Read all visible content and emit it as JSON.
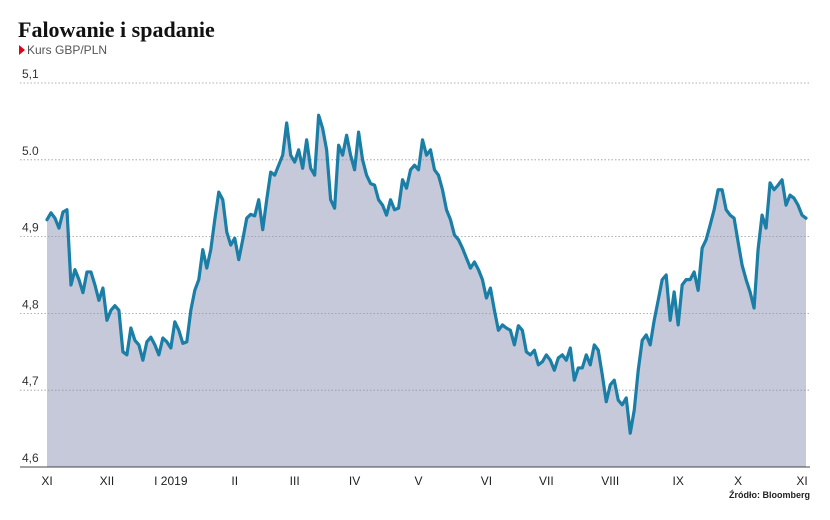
{
  "chart_data": {
    "type": "area",
    "title": "Falowanie i spadanie",
    "subtitle": "Kurs GBP/PLN",
    "source": "Źródło: Bloomberg",
    "line_color": "#1a7ea6",
    "fill_color": "#c5c9da",
    "grid": true,
    "ylim": [
      4.6,
      5.1
    ],
    "yticks": [
      {
        "value": 4.6,
        "label": "4,6"
      },
      {
        "value": 4.7,
        "label": "4,7"
      },
      {
        "value": 4.8,
        "label": "4,8"
      },
      {
        "value": 4.9,
        "label": "4,9"
      },
      {
        "value": 5.0,
        "label": "5.0"
      },
      {
        "value": 5.1,
        "label": "5,1"
      }
    ],
    "categories": [
      "XI",
      null,
      null,
      null,
      null,
      null,
      null,
      null,
      null,
      null,
      null,
      null,
      null,
      null,
      null,
      "XII",
      null,
      null,
      null,
      null,
      null,
      null,
      null,
      null,
      null,
      null,
      null,
      null,
      null,
      null,
      null,
      "I 2019",
      null,
      null,
      null,
      null,
      null,
      null,
      null,
      null,
      null,
      null,
      null,
      null,
      null,
      null,
      null,
      "II",
      null,
      null,
      null,
      null,
      null,
      null,
      null,
      null,
      null,
      null,
      null,
      null,
      null,
      null,
      "III",
      null,
      null,
      null,
      null,
      null,
      null,
      null,
      null,
      null,
      null,
      null,
      null,
      null,
      null,
      "IV",
      null,
      null,
      null,
      null,
      null,
      null,
      null,
      null,
      null,
      null,
      null,
      null,
      null,
      null,
      null,
      "V",
      null,
      null,
      null,
      null,
      null,
      null,
      null,
      null,
      null,
      null,
      null,
      null,
      null,
      null,
      null,
      null,
      "VI",
      null,
      null,
      null,
      null,
      null,
      null,
      null,
      null,
      null,
      null,
      null,
      null,
      null,
      null,
      "VII",
      null,
      null,
      null,
      null,
      null,
      null,
      null,
      null,
      null,
      null,
      null,
      null,
      null,
      null,
      null,
      "VIII",
      null,
      null,
      null,
      null,
      null,
      null,
      null,
      null,
      null,
      null,
      null,
      null,
      null,
      null,
      null,
      null,
      "IX",
      null,
      null,
      null,
      null,
      null,
      null,
      null,
      null,
      null,
      null,
      null,
      null,
      null,
      null,
      "X",
      null,
      null,
      null,
      null,
      null,
      null,
      null,
      null,
      null,
      null,
      null,
      null,
      null,
      null,
      null,
      "XI",
      null
    ],
    "values": [
      4.922,
      4.931,
      4.924,
      4.911,
      4.932,
      4.935,
      4.837,
      4.857,
      4.844,
      4.827,
      4.854,
      4.854,
      4.837,
      4.817,
      4.833,
      4.791,
      4.804,
      4.81,
      4.804,
      4.75,
      4.746,
      4.781,
      4.765,
      4.759,
      4.739,
      4.763,
      4.769,
      4.759,
      4.746,
      4.768,
      4.763,
      4.755,
      4.789,
      4.778,
      4.761,
      4.763,
      4.804,
      4.83,
      4.844,
      4.883,
      4.859,
      4.883,
      4.922,
      4.958,
      4.948,
      4.906,
      4.889,
      4.898,
      4.87,
      4.896,
      4.924,
      4.929,
      4.927,
      4.948,
      4.909,
      4.948,
      4.984,
      4.98,
      4.993,
      5.006,
      5.048,
      5.006,
      4.997,
      5.013,
      4.989,
      5.026,
      4.989,
      4.98,
      5.058,
      5.041,
      5.013,
      4.948,
      4.937,
      5.019,
      5.006,
      5.032,
      5.006,
      4.987,
      5.036,
      5.0,
      4.98,
      4.969,
      4.967,
      4.948,
      4.941,
      4.928,
      4.948,
      4.935,
      4.937,
      4.974,
      4.963,
      4.987,
      4.993,
      4.987,
      5.026,
      5.006,
      5.013,
      4.987,
      4.98,
      4.961,
      4.935,
      4.922,
      4.902,
      4.896,
      4.885,
      4.872,
      4.859,
      4.867,
      4.857,
      4.844,
      4.82,
      4.833,
      4.804,
      4.778,
      4.785,
      4.781,
      4.778,
      4.759,
      4.784,
      4.778,
      4.75,
      4.746,
      4.752,
      4.733,
      4.737,
      4.746,
      4.739,
      4.726,
      4.742,
      4.746,
      4.739,
      4.755,
      4.713,
      4.729,
      4.729,
      4.746,
      4.733,
      4.759,
      4.752,
      4.72,
      4.685,
      4.707,
      4.713,
      4.687,
      4.681,
      4.69,
      4.644,
      4.674,
      4.726,
      4.765,
      4.772,
      4.759,
      4.791,
      4.817,
      4.844,
      4.85,
      4.791,
      4.828,
      4.785,
      4.837,
      4.844,
      4.844,
      4.854,
      4.83,
      4.885,
      4.896,
      4.915,
      4.935,
      4.961,
      4.961,
      4.935,
      4.928,
      4.924,
      4.893,
      4.863,
      4.844,
      4.828,
      4.807,
      4.883,
      4.928,
      4.911,
      4.97,
      4.961,
      4.967,
      4.974,
      4.941,
      4.954,
      4.95,
      4.941,
      4.928,
      4.924
    ]
  }
}
